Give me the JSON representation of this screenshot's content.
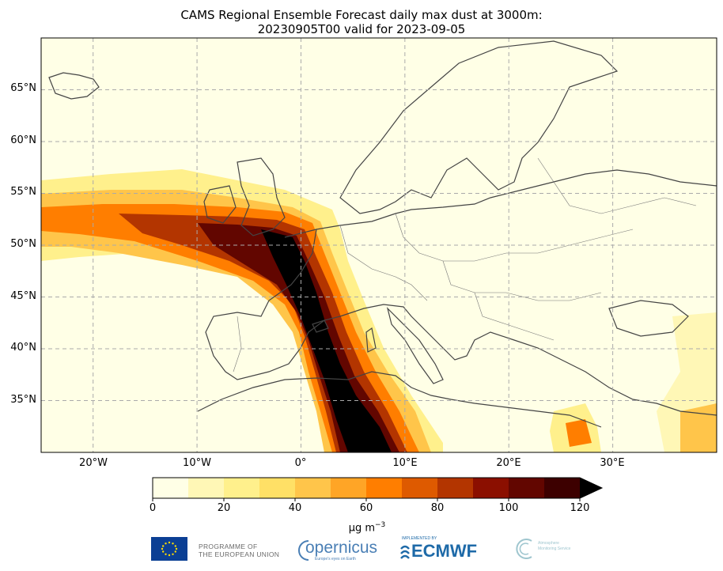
{
  "title_line1": "CAMS Regional Ensemble Forecast daily max dust at 3000m:",
  "title_line2": "20230905T00 valid for 2023-09-05",
  "lat_labels": [
    "65°N",
    "60°N",
    "55°N",
    "50°N",
    "45°N",
    "40°N",
    "35°N"
  ],
  "lon_labels": [
    "20°W",
    "10°W",
    "0°",
    "10°E",
    "20°E",
    "30°E"
  ],
  "colorbar": {
    "tick_labels": [
      "0",
      "20",
      "40",
      "60",
      "80",
      "100",
      "120"
    ],
    "unit_label": "μg m",
    "unit_exponent": "−3",
    "levels": [
      0,
      10,
      20,
      30,
      40,
      50,
      60,
      70,
      80,
      90,
      100,
      110,
      120
    ],
    "colors": [
      "#ffffe6",
      "#fff7b6",
      "#fff08c",
      "#ffe066",
      "#ffc54a",
      "#ffa526",
      "#ff7e00",
      "#de5a00",
      "#b33500",
      "#8b0f00",
      "#620600",
      "#3d0000"
    ],
    "extend_color": "#000000"
  },
  "map": {
    "lon_range": [
      -25,
      40
    ],
    "lat_range": [
      30,
      70
    ],
    "gridline_lons": [
      -20,
      -10,
      0,
      10,
      20,
      30
    ],
    "gridline_lats": [
      35,
      40,
      45,
      50,
      55,
      60,
      65
    ],
    "background_color": "#ffffe6",
    "coast_color": "#444444"
  },
  "logos": {
    "eu_line1": "PROGRAMME OF",
    "eu_line2": "THE EUROPEAN UNION",
    "copernicus": "opernicus",
    "copernicus_sub": "Europe's eyes on Earth",
    "ecmwf_pre": "IMPLEMENTED BY",
    "ecmwf": "ECMWF",
    "cams_line1": "Atmosphere",
    "cams_line2": "Monitoring Service"
  }
}
